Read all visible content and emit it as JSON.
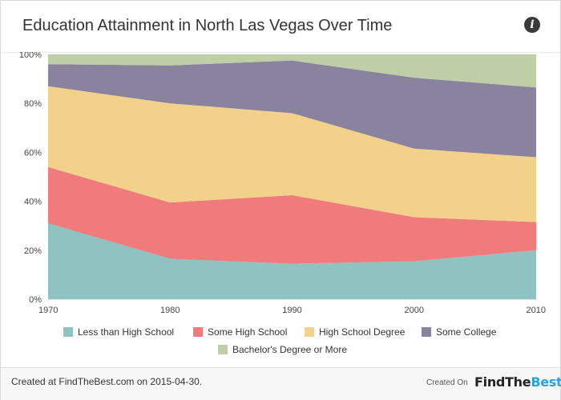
{
  "header": {
    "title": "Education Attainment in North Las Vegas Over Time",
    "info_icon": "info-icon"
  },
  "footer": {
    "created_text": "Created at FindTheBest.com on 2015-04-30.",
    "created_on_label": "Created On",
    "brand_main": "FindThe",
    "brand_accent": "Best"
  },
  "chart_data": {
    "type": "area",
    "stacked": true,
    "normalized": true,
    "x": [
      1970,
      1980,
      1990,
      2000,
      2010
    ],
    "y_ticks": [
      "0%",
      "20%",
      "40%",
      "60%",
      "80%",
      "100%"
    ],
    "ylim": [
      0,
      100
    ],
    "grid": true,
    "legend_position": "bottom",
    "series": [
      {
        "name": "Less than High School",
        "color": "#8fc3c1",
        "values": [
          31,
          16.5,
          14.5,
          15.5,
          20
        ]
      },
      {
        "name": "Some High School",
        "color": "#ef7b7b",
        "values": [
          23,
          23,
          28,
          18,
          11.5
        ]
      },
      {
        "name": "High School Degree",
        "color": "#f2d18a",
        "values": [
          33,
          40.5,
          33.5,
          28,
          26.5
        ]
      },
      {
        "name": "Some College",
        "color": "#8a839d",
        "values": [
          9,
          15.5,
          21.5,
          29,
          28.5
        ]
      },
      {
        "name": "Bachelor's Degree or More",
        "color": "#bfcfa5",
        "values": [
          4,
          4.5,
          2.5,
          9.5,
          13.5
        ]
      }
    ]
  }
}
